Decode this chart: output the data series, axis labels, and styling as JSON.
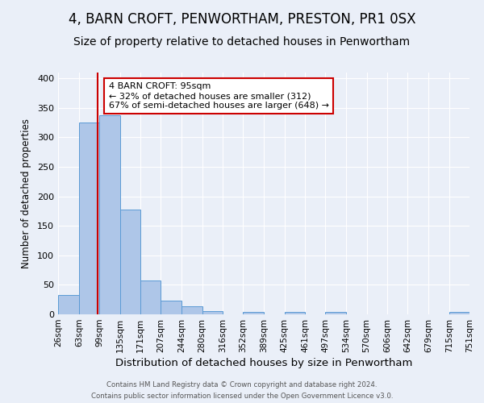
{
  "title": "4, BARN CROFT, PENWORTHAM, PRESTON, PR1 0SX",
  "subtitle": "Size of property relative to detached houses in Penwortham",
  "xlabel": "Distribution of detached houses by size in Penwortham",
  "ylabel": "Number of detached properties",
  "bin_edges": [
    26,
    63,
    99,
    135,
    171,
    207,
    244,
    280,
    316,
    352,
    389,
    425,
    461,
    497,
    534,
    570,
    606,
    642,
    679,
    715,
    751
  ],
  "bar_heights": [
    33,
    325,
    338,
    177,
    57,
    23,
    14,
    6,
    0,
    4,
    0,
    4,
    0,
    4,
    0,
    0,
    0,
    0,
    0,
    4
  ],
  "bar_color": "#aec6e8",
  "bar_edge_color": "#5b9bd5",
  "property_size": 95,
  "vline_color": "#cc0000",
  "ylim": [
    0,
    410
  ],
  "yticks": [
    0,
    50,
    100,
    150,
    200,
    250,
    300,
    350,
    400
  ],
  "annotation_box_text": "4 BARN CROFT: 95sqm\n← 32% of detached houses are smaller (312)\n67% of semi-detached houses are larger (648) →",
  "annotation_box_color": "#ffffff",
  "annotation_box_edge_color": "#cc0000",
  "footer_line1": "Contains HM Land Registry data © Crown copyright and database right 2024.",
  "footer_line2": "Contains public sector information licensed under the Open Government Licence v3.0.",
  "background_color": "#eaeff8",
  "plot_background_color": "#eaeff8",
  "tick_label_fontsize": 7.5,
  "title_fontsize": 12,
  "subtitle_fontsize": 10
}
